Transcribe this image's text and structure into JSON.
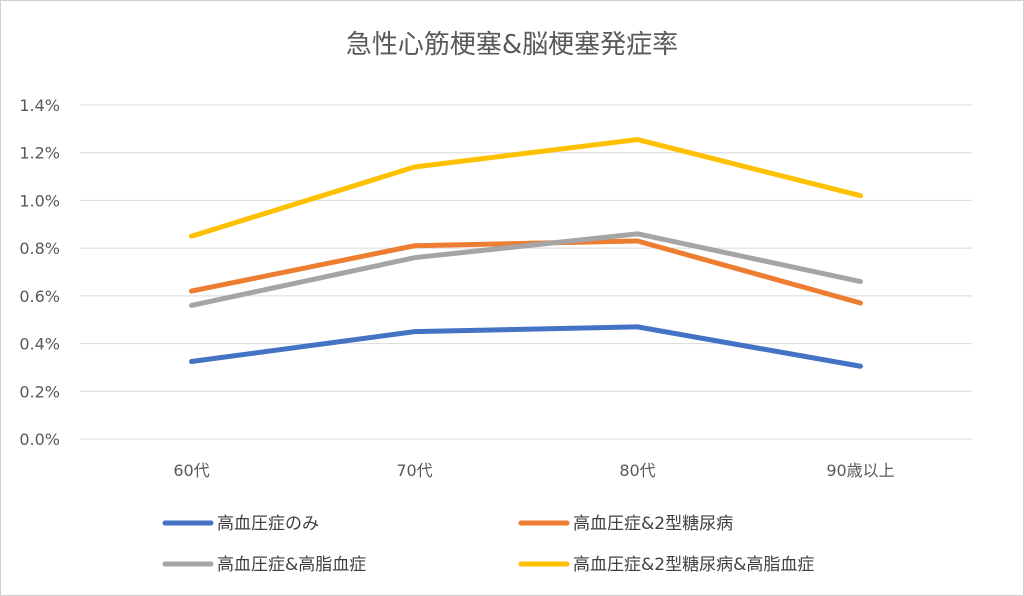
{
  "chart_data": {
    "type": "line",
    "title": "急性心筋梗塞&脳梗塞発症率",
    "xlabel": "",
    "ylabel": "",
    "categories": [
      "60代",
      "70代",
      "80代",
      "90歳以上"
    ],
    "ylim": [
      0,
      0.014
    ],
    "yticks": [
      0,
      0.002,
      0.004,
      0.006,
      0.008,
      0.01,
      0.012,
      0.014
    ],
    "ytick_labels": [
      "0.0%",
      "0.2%",
      "0.4%",
      "0.6%",
      "0.8%",
      "1.0%",
      "1.2%",
      "1.4%"
    ],
    "grid": true,
    "legend_position": "bottom",
    "series": [
      {
        "name": "高血圧症のみ",
        "color": "#4472C4",
        "values": [
          0.00325,
          0.0045,
          0.0047,
          0.00305
        ]
      },
      {
        "name": "高血圧症&2型糖尿病",
        "color": "#ED7D31",
        "values": [
          0.0062,
          0.0081,
          0.0083,
          0.0057
        ]
      },
      {
        "name": "高血圧症&高脂血症",
        "color": "#A5A5A5",
        "values": [
          0.0056,
          0.0076,
          0.0086,
          0.0066
        ]
      },
      {
        "name": "高血圧症&2型糖尿病&高脂血症",
        "color": "#FFC000",
        "values": [
          0.0085,
          0.0114,
          0.01255,
          0.0102
        ]
      }
    ]
  }
}
